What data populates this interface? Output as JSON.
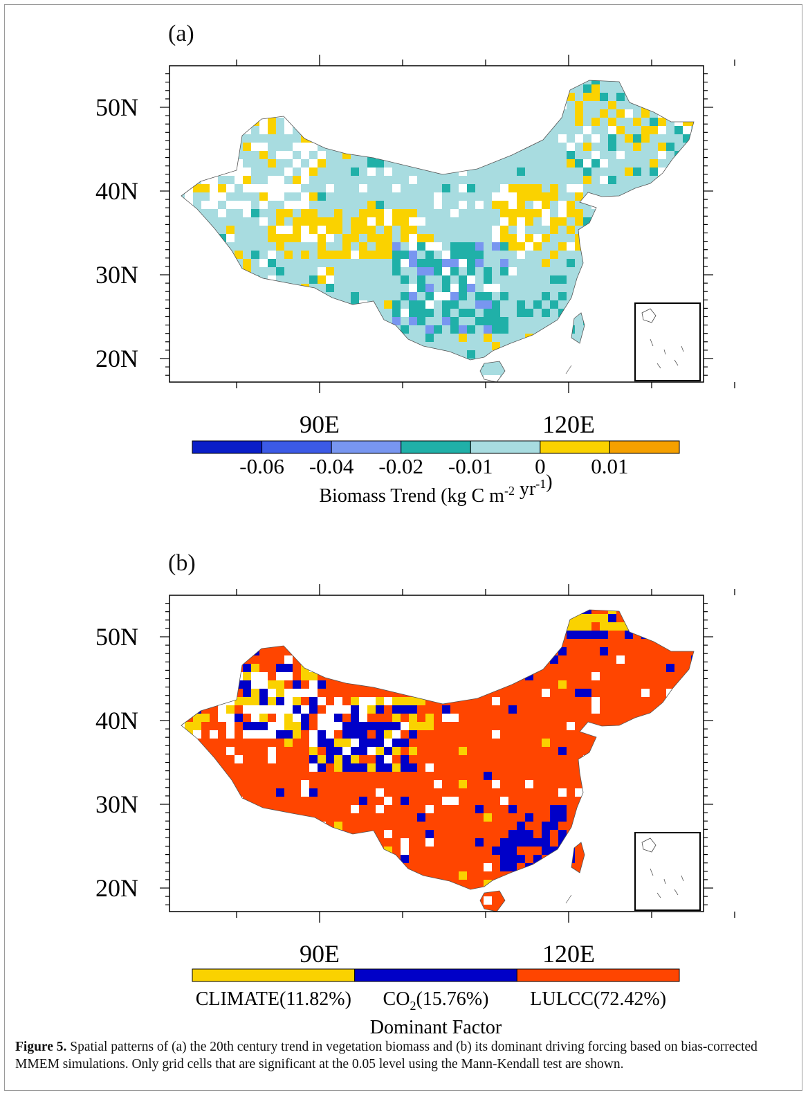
{
  "figure": {
    "caption_label": "Figure 5.",
    "caption_text": "Spatial patterns of (a) the 20th century trend in vegetation biomass and (b) its dominant driving forcing based on bias-corrected MMEM simulations. Only grid cells that are significant at the 0.05 level using the Mann-Kendall test are shown."
  },
  "chart_data": [
    {
      "type": "heatmap",
      "panel": "(a)",
      "y_ticks": [
        "50N",
        "40N",
        "30N",
        "20N"
      ],
      "x_ticks": [
        "90E",
        "120E"
      ],
      "colorbar": {
        "title_main": "Biomass Trend (kg C m",
        "title_exp1": "-2",
        "title_mid": " yr",
        "title_exp2": "-1",
        "title_end": ")",
        "tick_labels": [
          "-0.06",
          "-0.04",
          "-0.02",
          "-0.01",
          "0",
          "0.01"
        ],
        "colors": [
          "#0a1ec8",
          "#3c5ae6",
          "#7896f0",
          "#20b0a8",
          "#a8dce0",
          "#fad200",
          "#f5a000"
        ]
      }
    },
    {
      "type": "heatmap",
      "panel": "(b)",
      "y_ticks": [
        "50N",
        "40N",
        "30N",
        "20N"
      ],
      "x_ticks": [
        "90E",
        "120E"
      ],
      "colorbar": {
        "title": "Dominant Factor",
        "categories": [
          {
            "name": "CLIMATE(11.82%)",
            "color": "#fad200",
            "share": 11.82
          },
          {
            "name": "CO2(15.76%)",
            "pre": "CO",
            "sub": "2",
            "post": "(15.76%)",
            "color": "#0000c8",
            "share": 15.76
          },
          {
            "name": "LULCC(72.42%)",
            "color": "#ff4500",
            "share": 72.42
          }
        ]
      }
    }
  ]
}
